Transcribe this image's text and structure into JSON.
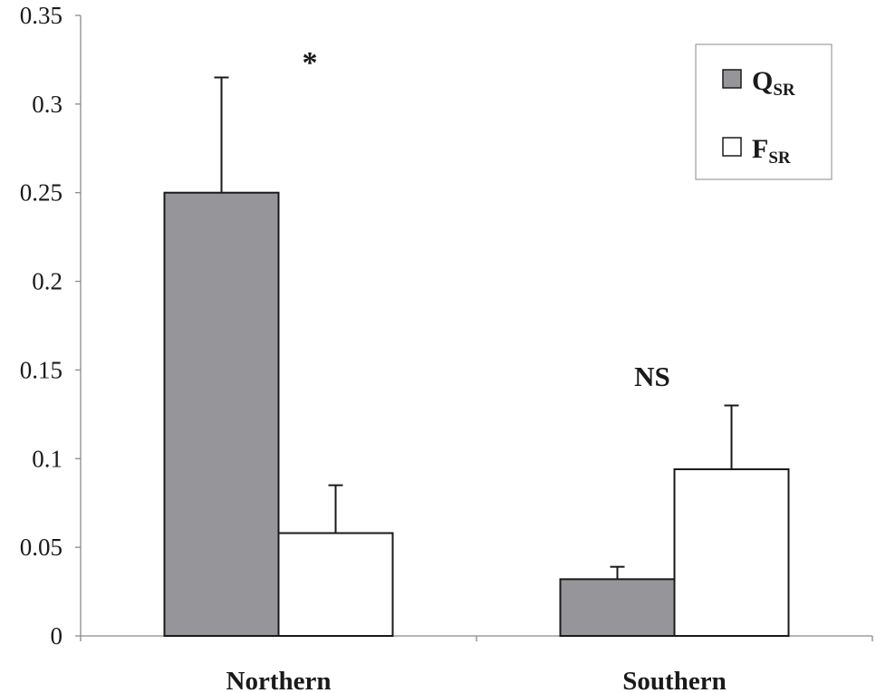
{
  "chart_data": {
    "type": "bar",
    "categories": [
      "Northern",
      "Southern"
    ],
    "series": [
      {
        "name": "Q",
        "subscript": "SR",
        "color": "#96969a",
        "values": [
          0.25,
          0.032
        ],
        "errors": [
          0.065,
          0.007
        ]
      },
      {
        "name": "F",
        "subscript": "SR",
        "color": "#ffffff",
        "values": [
          0.058,
          0.094
        ],
        "errors": [
          0.027,
          0.036
        ]
      }
    ],
    "ylim": [
      0,
      0.35
    ],
    "yticks": [
      "0",
      "0.05",
      "0.1",
      "0.15",
      "0.2",
      "0.25",
      "0.3",
      "0.35"
    ],
    "annotations": [
      "*",
      "NS"
    ],
    "legend_position": "top-right",
    "grid": false,
    "title": "",
    "xlabel": "",
    "ylabel": ""
  }
}
